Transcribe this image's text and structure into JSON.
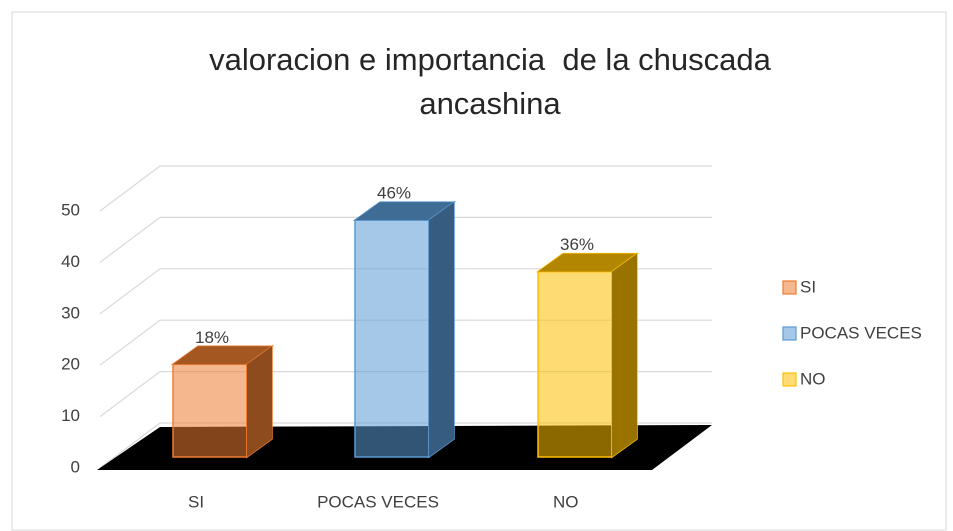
{
  "chart_data": {
    "type": "bar3d",
    "title": "valoracion e importancia  de la chuscada ancashina",
    "categories": [
      "SI",
      "POCAS  VECES",
      "NO"
    ],
    "values": [
      18,
      46,
      36
    ],
    "value_labels": [
      "18%",
      "46%",
      "36%"
    ],
    "colors": [
      "#ed7d31",
      "#5b9bd5",
      "#ffc000"
    ],
    "ylim": [
      0,
      50
    ],
    "yticks": [
      0,
      10,
      20,
      30,
      40,
      50
    ],
    "grid": true,
    "legend": "right"
  }
}
